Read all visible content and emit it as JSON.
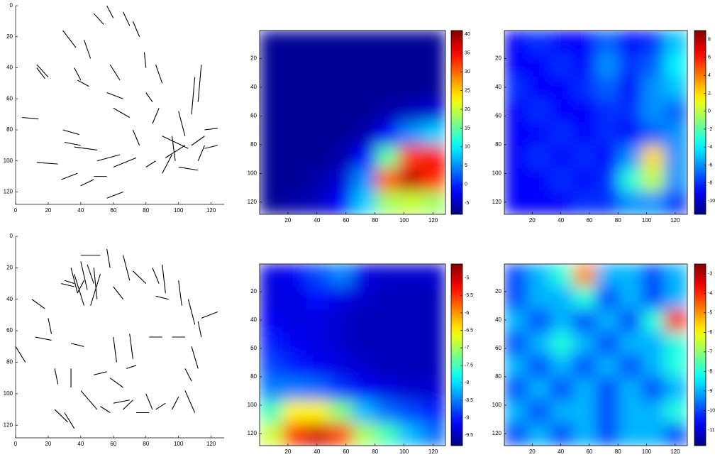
{
  "chart_data": [
    {
      "type": "segments",
      "xlim": [
        0,
        128
      ],
      "ylim": [
        128,
        0
      ],
      "xticks": [
        0,
        20,
        40,
        60,
        80,
        100,
        120
      ],
      "yticks": [
        0,
        20,
        40,
        60,
        80,
        100,
        120
      ],
      "segments": [
        [
          56,
          0,
          60,
          8
        ],
        [
          48,
          5,
          54,
          12
        ],
        [
          66,
          4,
          70,
          13
        ],
        [
          72,
          10,
          76,
          20
        ],
        [
          29,
          16,
          37,
          27
        ],
        [
          79,
          30,
          80,
          40
        ],
        [
          42,
          22,
          46,
          34
        ],
        [
          13,
          38,
          20,
          46
        ],
        [
          13,
          40,
          18,
          47
        ],
        [
          38,
          48,
          45,
          52
        ],
        [
          36,
          40,
          40,
          48
        ],
        [
          58,
          38,
          64,
          48
        ],
        [
          86,
          38,
          90,
          50
        ],
        [
          114,
          38,
          112,
          62
        ],
        [
          110,
          46,
          108,
          70
        ],
        [
          100,
          68,
          104,
          84
        ],
        [
          88,
          66,
          84,
          76
        ],
        [
          80,
          56,
          84,
          62
        ],
        [
          56,
          56,
          66,
          60
        ],
        [
          60,
          66,
          70,
          72
        ],
        [
          29,
          80,
          39,
          83
        ],
        [
          30,
          88,
          40,
          90
        ],
        [
          36,
          91,
          50,
          93
        ],
        [
          13,
          101,
          26,
          102
        ],
        [
          50,
          100,
          64,
          96
        ],
        [
          60,
          104,
          74,
          98
        ],
        [
          48,
          110,
          56,
          110
        ],
        [
          28,
          112,
          38,
          108
        ],
        [
          40,
          116,
          48,
          112
        ],
        [
          56,
          124,
          66,
          120
        ],
        [
          80,
          104,
          86,
          100
        ],
        [
          90,
          84,
          106,
          92
        ],
        [
          92,
          98,
          104,
          90
        ],
        [
          96,
          84,
          98,
          100
        ],
        [
          108,
          90,
          116,
          84
        ],
        [
          112,
          100,
          116,
          90
        ],
        [
          100,
          104,
          112,
          106
        ],
        [
          116,
          80,
          124,
          79
        ],
        [
          116,
          92,
          124,
          90
        ],
        [
          90,
          108,
          96,
          96
        ],
        [
          4,
          72,
          14,
          73
        ],
        [
          72,
          80,
          76,
          90
        ]
      ]
    },
    {
      "type": "heatmap",
      "xlim": [
        0.5,
        128.5
      ],
      "ylim": [
        128.5,
        0.5
      ],
      "xticks": [
        20,
        40,
        60,
        80,
        100,
        120
      ],
      "yticks": [
        20,
        40,
        60,
        80,
        100,
        120
      ],
      "clim": [
        -8,
        41
      ],
      "cticks": [
        -5,
        0,
        5,
        10,
        15,
        20,
        25,
        30,
        35,
        40
      ],
      "z": [
        [
          -7,
          -7,
          -7,
          -7,
          -7,
          -7,
          -7,
          -7
        ],
        [
          -7,
          -7,
          -7,
          -7,
          -7,
          -7,
          -7,
          -7
        ],
        [
          -7,
          -7,
          -7,
          -7,
          -7,
          -7,
          -7,
          -7
        ],
        [
          -7,
          -7,
          -7,
          -7,
          -7,
          -6,
          -5,
          -4
        ],
        [
          -7,
          -7,
          -7,
          -7,
          -6,
          -2,
          5,
          8
        ],
        [
          -7,
          -7,
          -7,
          -6,
          -2,
          15,
          32,
          35
        ],
        [
          -7,
          -7,
          -6,
          -4,
          5,
          30,
          38,
          33
        ],
        [
          -7,
          -6,
          -5,
          -2,
          8,
          18,
          20,
          18
        ]
      ]
    },
    {
      "type": "heatmap",
      "xlim": [
        0.5,
        128.5
      ],
      "ylim": [
        128.5,
        0.5
      ],
      "xticks": [
        20,
        40,
        60,
        80,
        100,
        120
      ],
      "yticks": [
        20,
        40,
        60,
        80,
        100,
        120
      ],
      "clim": [
        -11.5,
        9
      ],
      "cticks": [
        -10,
        -8,
        -6,
        -4,
        -2,
        0,
        2,
        4,
        6,
        8
      ],
      "z": [
        [
          -9,
          -8,
          -9,
          -9,
          -7,
          -9,
          -8,
          -5
        ],
        [
          -9,
          -9,
          -8,
          -9,
          -6,
          -8,
          -7,
          -4
        ],
        [
          -8,
          -9,
          -9,
          -8,
          -7,
          -9,
          -6,
          -5
        ],
        [
          -9,
          -8,
          -9,
          -9,
          -8,
          -8,
          -6,
          -7
        ],
        [
          -9,
          -9,
          -8,
          -9,
          -8,
          -9,
          -7,
          -6
        ],
        [
          -9,
          -8,
          -9,
          -8,
          -9,
          -6,
          2,
          -6
        ],
        [
          -9,
          -9,
          -8,
          -9,
          -8,
          -3,
          0,
          -6
        ],
        [
          -9,
          -9,
          -9,
          -8,
          -8,
          -6,
          -6,
          -8
        ]
      ]
    },
    {
      "type": "segments",
      "xlim": [
        0,
        128
      ],
      "ylim": [
        128,
        0
      ],
      "xticks": [
        0,
        20,
        40,
        60,
        80,
        100,
        120
      ],
      "yticks": [
        0,
        20,
        40,
        60,
        80,
        100,
        120
      ],
      "segments": [
        [
          34,
          20,
          38,
          36
        ],
        [
          40,
          16,
          44,
          34
        ],
        [
          44,
          18,
          48,
          30
        ],
        [
          48,
          20,
          50,
          40
        ],
        [
          30,
          28,
          36,
          30
        ],
        [
          36,
          24,
          42,
          44
        ],
        [
          38,
          36,
          42,
          28
        ],
        [
          52,
          24,
          46,
          44
        ],
        [
          28,
          30,
          36,
          32
        ],
        [
          40,
          12,
          52,
          12
        ],
        [
          56,
          8,
          58,
          20
        ],
        [
          66,
          12,
          70,
          28
        ],
        [
          72,
          22,
          80,
          30
        ],
        [
          84,
          20,
          88,
          30
        ],
        [
          90,
          18,
          92,
          36
        ],
        [
          100,
          28,
          102,
          44
        ],
        [
          106,
          40,
          110,
          56
        ],
        [
          114,
          52,
          124,
          48
        ],
        [
          112,
          54,
          114,
          64
        ],
        [
          96,
          64,
          104,
          64
        ],
        [
          82,
          64,
          90,
          64
        ],
        [
          70,
          62,
          72,
          78
        ],
        [
          60,
          64,
          62,
          80
        ],
        [
          12,
          64,
          22,
          66
        ],
        [
          20,
          52,
          22,
          62
        ],
        [
          10,
          40,
          18,
          46
        ],
        [
          34,
          68,
          42,
          70
        ],
        [
          24,
          84,
          26,
          94
        ],
        [
          34,
          84,
          34,
          96
        ],
        [
          48,
          88,
          56,
          86
        ],
        [
          58,
          90,
          66,
          96
        ],
        [
          68,
          84,
          74,
          82
        ],
        [
          80,
          100,
          84,
          110
        ],
        [
          74,
          112,
          82,
          112
        ],
        [
          66,
          110,
          72,
          104
        ],
        [
          60,
          106,
          70,
          104
        ],
        [
          52,
          108,
          58,
          112
        ],
        [
          40,
          98,
          50,
          110
        ],
        [
          24,
          110,
          32,
          118
        ],
        [
          30,
          112,
          36,
          122
        ],
        [
          86,
          110,
          92,
          106
        ],
        [
          96,
          110,
          100,
          102
        ],
        [
          104,
          84,
          108,
          92
        ],
        [
          108,
          70,
          112,
          84
        ],
        [
          104,
          98,
          110,
          112
        ],
        [
          0,
          70,
          6,
          80
        ],
        [
          60,
          32,
          66,
          40
        ],
        [
          86,
          38,
          94,
          40
        ]
      ]
    },
    {
      "type": "heatmap",
      "xlim": [
        0.5,
        128.5
      ],
      "ylim": [
        128.5,
        0.5
      ],
      "xticks": [
        20,
        40,
        60,
        80,
        100,
        120
      ],
      "yticks": [
        20,
        40,
        60,
        80,
        100,
        120
      ],
      "clim": [
        -9.8,
        -4.6
      ],
      "cticks": [
        -9.5,
        -9,
        -8.5,
        -8,
        -7.5,
        -7,
        -6.5,
        -6,
        -5.5,
        -5
      ],
      "z": [
        [
          -9.3,
          -9.2,
          -8.8,
          -8.5,
          -9.3,
          -9.4,
          -9.4,
          -9.4
        ],
        [
          -9.3,
          -9.3,
          -9.1,
          -9.3,
          -9.4,
          -9.5,
          -9.5,
          -9.5
        ],
        [
          -9.2,
          -9.3,
          -9.3,
          -9.4,
          -9.5,
          -9.5,
          -9.5,
          -9.5
        ],
        [
          -9.0,
          -9.2,
          -9.3,
          -9.4,
          -9.5,
          -9.5,
          -9.5,
          -9.5
        ],
        [
          -8.8,
          -9.0,
          -9.2,
          -9.3,
          -9.4,
          -9.5,
          -9.5,
          -9.5
        ],
        [
          -8.5,
          -8.5,
          -8.6,
          -8.9,
          -9.2,
          -9.3,
          -9.4,
          -9.4
        ],
        [
          -7.5,
          -6.5,
          -6.5,
          -7.2,
          -8.2,
          -8.6,
          -8.8,
          -9.0
        ],
        [
          -6.8,
          -5.5,
          -5.0,
          -5.6,
          -7.0,
          -7.5,
          -8.2,
          -8.6
        ]
      ]
    },
    {
      "type": "heatmap",
      "xlim": [
        0.5,
        128.5
      ],
      "ylim": [
        128.5,
        0.5
      ],
      "xticks": [
        20,
        40,
        60,
        80,
        100,
        120
      ],
      "yticks": [
        20,
        40,
        60,
        80,
        100,
        120
      ],
      "clim": [
        -11.8,
        -2.5
      ],
      "cticks": [
        -11,
        -10,
        -9,
        -8,
        -7,
        -6,
        -5,
        -4,
        -3
      ],
      "z": [
        [
          -10,
          -9,
          -8,
          -5,
          -9,
          -9,
          -10,
          -9
        ],
        [
          -10,
          -9,
          -9,
          -8,
          -10,
          -9,
          -10,
          -9
        ],
        [
          -9,
          -10,
          -9,
          -10,
          -9,
          -10,
          -8,
          -4
        ],
        [
          -10,
          -9,
          -8,
          -9,
          -10,
          -9,
          -9,
          -8
        ],
        [
          -9,
          -10,
          -9,
          -10,
          -9,
          -10,
          -9,
          -8
        ],
        [
          -10,
          -9,
          -10,
          -9,
          -10,
          -9,
          -10,
          -9
        ],
        [
          -9,
          -10,
          -9,
          -9,
          -10,
          -9,
          -9,
          -8
        ],
        [
          -10,
          -9,
          -10,
          -9,
          -10,
          -9,
          -9,
          -10
        ]
      ]
    }
  ]
}
